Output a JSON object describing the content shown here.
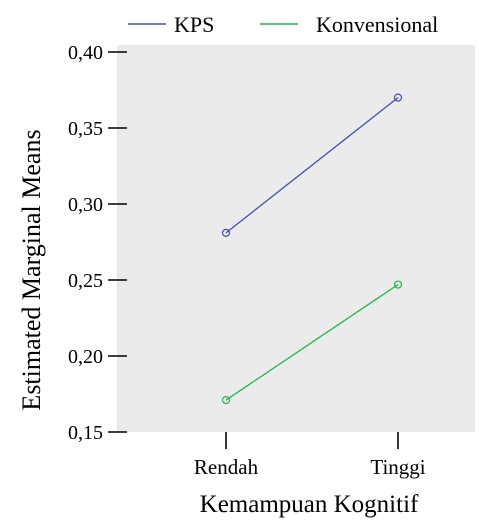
{
  "chart_data": {
    "type": "line",
    "title": "",
    "xlabel": "Kemampuan Kognitif",
    "ylabel": "Estimated Marginal Means",
    "categories": [
      "Rendah",
      "Tinggi"
    ],
    "ylim": [
      0.15,
      0.4
    ],
    "y_ticks": [
      0.4,
      0.35,
      0.3,
      0.25,
      0.2,
      0.15
    ],
    "y_tick_labels": [
      "0,40",
      "0,35",
      "0,30",
      "0,25",
      "0,20",
      "0,15"
    ],
    "grid": false,
    "legend_position": "top",
    "series": [
      {
        "name": "KPS",
        "values": [
          0.281,
          0.37
        ],
        "color": "#3b4fb8"
      },
      {
        "name": "Konvensional",
        "values": [
          0.171,
          0.247
        ],
        "color": "#1fb84a"
      }
    ],
    "plot_background": "#ebebeb"
  }
}
